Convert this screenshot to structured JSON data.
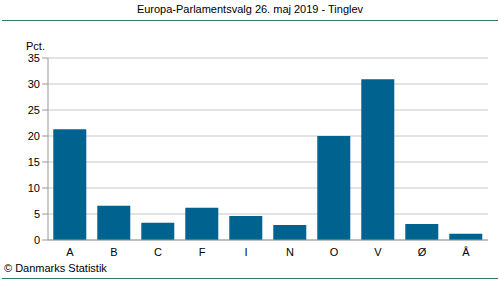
{
  "chart_data": {
    "type": "bar",
    "title": "Europa-Parlamentsvalg 26. maj 2019 - Tinglev",
    "y_label": "Pct.",
    "annotations": [
      "© Danmarks Statistik"
    ],
    "categories": [
      "A",
      "B",
      "C",
      "F",
      "I",
      "N",
      "O",
      "V",
      "Ø",
      "Å"
    ],
    "values": [
      21.3,
      6.6,
      3.3,
      6.2,
      4.6,
      2.9,
      20.0,
      30.9,
      3.1,
      1.2
    ],
    "color": "#00628f",
    "ylim": [
      0,
      35
    ],
    "yticks": [
      0,
      5,
      10,
      15,
      20,
      25,
      30,
      35
    ],
    "grid": true
  }
}
